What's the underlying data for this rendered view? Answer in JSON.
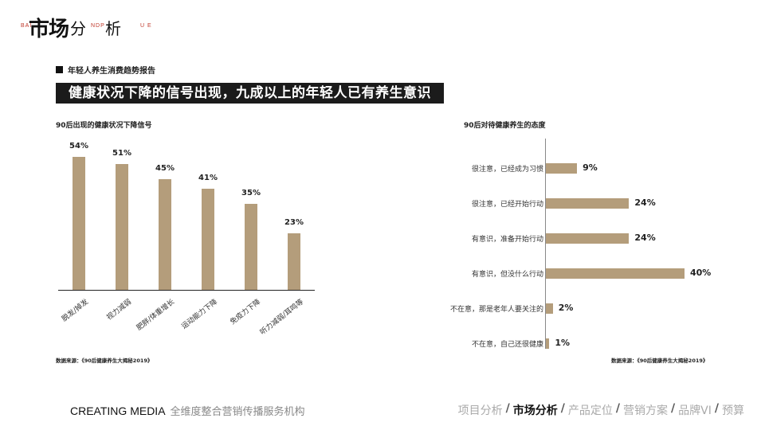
{
  "logo": {
    "main": "市场",
    "mid1": "分",
    "mid2": "析",
    "sub1": "BAI",
    "sub2": "NDP",
    "sub3": "U E"
  },
  "section_tag": "年轻人养生消费趋势报告",
  "headline": "健康状况下降的信号出现，九成以上的年轻人已有养生意识",
  "colors": {
    "bar": "#b49d7b",
    "headline_bg": "#1b1b1b",
    "text": "#222222"
  },
  "chart_data": [
    {
      "type": "bar",
      "title": "90后出现的健康状况下降信号",
      "categories": [
        "脱发/掉发",
        "视力减弱",
        "肥胖/体重增长",
        "运动能力下降",
        "免疫力下降",
        "听力减弱/耳鸣等"
      ],
      "values": [
        54,
        51,
        45,
        41,
        35,
        23
      ],
      "value_labels": [
        "54%",
        "51%",
        "45%",
        "41%",
        "35%",
        "23%"
      ],
      "xlabel": "",
      "ylabel": "",
      "unit": "%",
      "source": "数据来源：《90后健康养生大揭秘2019》"
    },
    {
      "type": "bar",
      "orientation": "horizontal",
      "title": "90后对待健康养生的态度",
      "categories": [
        "很注意，已经成为习惯",
        "很注意，已经开始行动",
        "有意识，准备开始行动",
        "有意识，但没什么行动",
        "不在意，那是老年人要关注的",
        "不在意，自己还很健康"
      ],
      "values": [
        9,
        24,
        24,
        40,
        2,
        1
      ],
      "value_labels": [
        "9%",
        "24%",
        "24%",
        "40%",
        "2%",
        "1%"
      ],
      "unit": "%",
      "source": "数据来源：《90后健康养生大揭秘2019》"
    }
  ],
  "footer": {
    "brand": "CREATING MEDIA",
    "tagline": "全维度整合营销传播服务机构",
    "nav": [
      "项目分析",
      "市场分析",
      "产品定位",
      "营销方案",
      "品牌VI",
      "预算"
    ],
    "separator": "/",
    "active_index": 1
  }
}
